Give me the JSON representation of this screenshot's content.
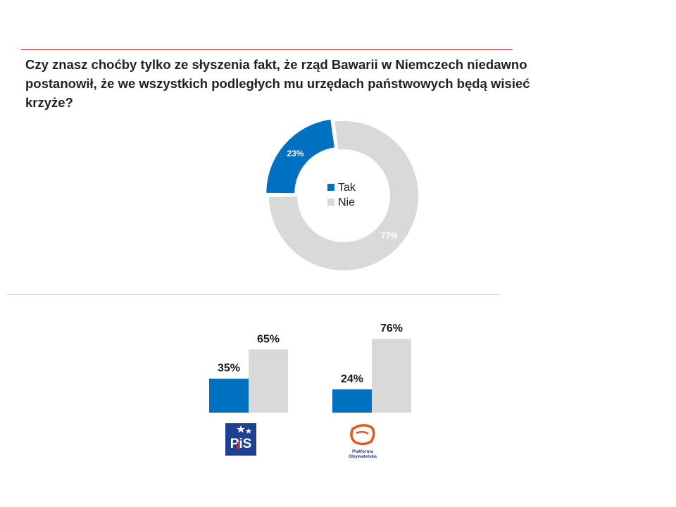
{
  "question": "Czy znasz choćby tylko ze słyszenia fakt, że rząd Bawarii w Niemczech niedawno postanowił, że we wszystkich podległych mu urzędach państwowych będą wisieć krzyże?",
  "colors": {
    "tak": "#0070c0",
    "nie": "#d9d9d9",
    "accent_rule": "#c0504d"
  },
  "chart_data": [
    {
      "type": "pie",
      "categories": [
        "Tak",
        "Nie"
      ],
      "values": [
        23,
        77
      ],
      "data_labels": [
        "23%",
        "77%"
      ],
      "legend": [
        "Tak",
        "Nie"
      ],
      "legend_position": "center"
    },
    {
      "type": "bar",
      "categories": [
        "PiS",
        "Platforma Obywatelska"
      ],
      "series": [
        {
          "name": "Tak",
          "values": [
            35,
            24
          ],
          "labels": [
            "35%",
            "24%"
          ]
        },
        {
          "name": "Nie",
          "values": [
            65,
            76
          ],
          "labels": [
            "65%",
            "76%"
          ]
        }
      ],
      "ylim": [
        0,
        100
      ],
      "grid": false
    }
  ],
  "logos": {
    "pis": "PiS",
    "po": "Platforma Obywatelska"
  }
}
